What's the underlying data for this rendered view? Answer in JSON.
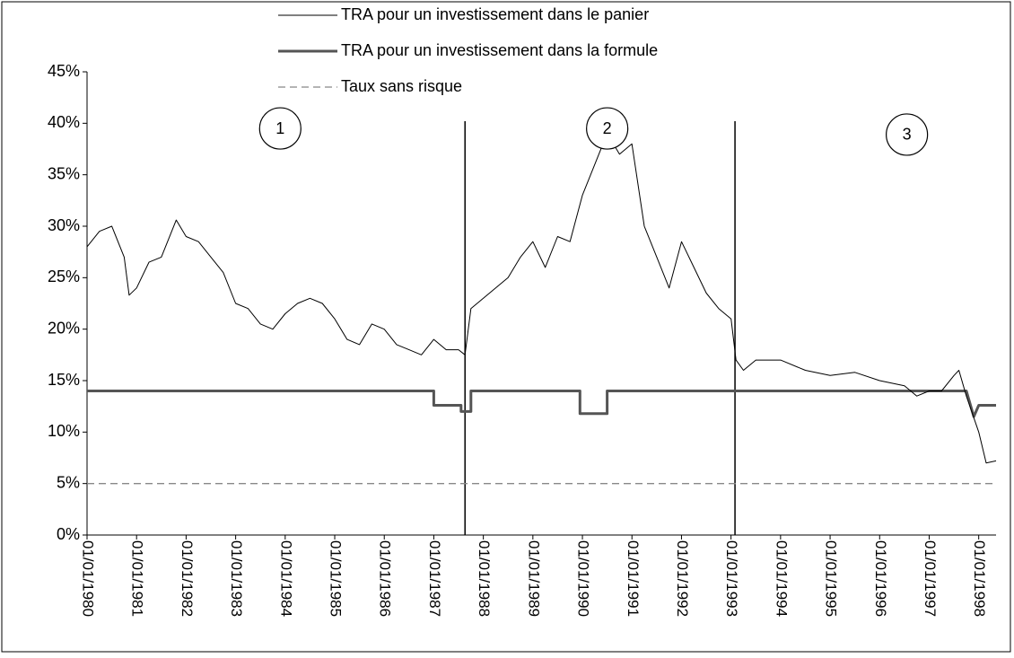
{
  "chart_data": {
    "type": "line",
    "xlim": [
      1980,
      1998.35
    ],
    "ylim": [
      0,
      45
    ],
    "yticks": [
      {
        "value": 0,
        "label": "0%"
      },
      {
        "value": 5,
        "label": "5%"
      },
      {
        "value": 10,
        "label": "10%"
      },
      {
        "value": 15,
        "label": "15%"
      },
      {
        "value": 20,
        "label": "20%"
      },
      {
        "value": 25,
        "label": "25%"
      },
      {
        "value": 30,
        "label": "30%"
      },
      {
        "value": 35,
        "label": "35%"
      },
      {
        "value": 40,
        "label": "40%"
      },
      {
        "value": 45,
        "label": "45%"
      }
    ],
    "xticks": [
      {
        "value": 1980,
        "label": "01/01/1980"
      },
      {
        "value": 1981,
        "label": "01/01/1981"
      },
      {
        "value": 1982,
        "label": "01/01/1982"
      },
      {
        "value": 1983,
        "label": "01/01/1983"
      },
      {
        "value": 1984,
        "label": "01/01/1984"
      },
      {
        "value": 1985,
        "label": "01/01/1985"
      },
      {
        "value": 1986,
        "label": "01/01/1986"
      },
      {
        "value": 1987,
        "label": "01/01/1987"
      },
      {
        "value": 1988,
        "label": "01/01/1988"
      },
      {
        "value": 1989,
        "label": "01/01/1989"
      },
      {
        "value": 1990,
        "label": "01/01/1990"
      },
      {
        "value": 1991,
        "label": "01/01/1991"
      },
      {
        "value": 1992,
        "label": "01/01/1992"
      },
      {
        "value": 1993,
        "label": "01/01/1993"
      },
      {
        "value": 1994,
        "label": "01/01/1994"
      },
      {
        "value": 1995,
        "label": "01/01/1995"
      },
      {
        "value": 1996,
        "label": "01/01/1996"
      },
      {
        "value": 1997,
        "label": "01/01/1997"
      },
      {
        "value": 1998,
        "label": "01/01/1998"
      }
    ],
    "grid": false,
    "legend": "top",
    "series": [
      {
        "name": "TRA pour un investissement dans le panier",
        "color": "#000000",
        "width": 1,
        "dash": "none",
        "x": [
          1980,
          1980.25,
          1980.5,
          1980.75,
          1980.85,
          1981,
          1981.25,
          1981.5,
          1981.8,
          1982,
          1982.25,
          1982.5,
          1982.75,
          1983,
          1983.25,
          1983.5,
          1983.75,
          1984,
          1984.25,
          1984.5,
          1984.75,
          1985,
          1985.25,
          1985.5,
          1985.75,
          1986,
          1986.25,
          1986.5,
          1986.75,
          1987,
          1987.25,
          1987.5,
          1987.63,
          1987.75,
          1988,
          1988.25,
          1988.5,
          1988.75,
          1989,
          1989.25,
          1989.5,
          1989.75,
          1990,
          1990.25,
          1990.5,
          1990.75,
          1991,
          1991.25,
          1991.5,
          1991.75,
          1992,
          1992.25,
          1992.5,
          1992.75,
          1993,
          1993.1,
          1993.25,
          1993.5,
          1994,
          1994.5,
          1995,
          1995.5,
          1996,
          1996.5,
          1996.75,
          1997,
          1997.25,
          1997.5,
          1997.6,
          1997.75,
          1998,
          1998.15,
          1998.35
        ],
        "values": [
          28,
          29.5,
          30,
          27,
          23.3,
          24,
          26.5,
          27,
          30.6,
          29,
          28.5,
          27,
          25.5,
          22.5,
          22,
          20.5,
          20,
          21.5,
          22.5,
          23,
          22.5,
          21,
          19,
          18.5,
          20.5,
          20,
          18.5,
          18,
          17.5,
          19,
          18,
          18,
          17.5,
          22,
          23,
          24,
          25,
          27,
          28.5,
          26,
          29,
          28.5,
          33,
          36,
          39,
          37,
          38,
          30,
          27,
          24,
          28.5,
          26,
          23.5,
          22,
          21,
          17,
          16,
          17,
          17,
          16,
          15.5,
          15.8,
          15,
          14.5,
          13.5,
          14,
          14,
          15.5,
          16,
          13.5,
          10,
          7,
          7.2
        ]
      },
      {
        "name": "TRA pour un investissement dans la formule",
        "color": "#555555",
        "width": 3,
        "dash": "none",
        "x": [
          1980,
          1987,
          1987,
          1987.55,
          1987.55,
          1987.75,
          1987.75,
          1989.95,
          1989.95,
          1990.5,
          1990.5,
          1997.75,
          1997.9,
          1998,
          1998.35
        ],
        "values": [
          14,
          14,
          12.6,
          12.6,
          12,
          12,
          14,
          14,
          11.8,
          11.8,
          14,
          14,
          11.5,
          12.6,
          12.6
        ]
      },
      {
        "name": "Taux sans risque",
        "color": "#888888",
        "width": 1.3,
        "dash": "8 5",
        "x": [
          1980,
          1998.35
        ],
        "values": [
          5,
          5
        ]
      }
    ],
    "vlines": [
      1987.63,
      1993.08
    ],
    "annotations": [
      {
        "text": "1",
        "x": 1983.9,
        "y": 39.5
      },
      {
        "text": "2",
        "x": 1990.5,
        "y": 39.5
      },
      {
        "text": "3",
        "x": 1996.55,
        "y": 38.9
      }
    ]
  }
}
